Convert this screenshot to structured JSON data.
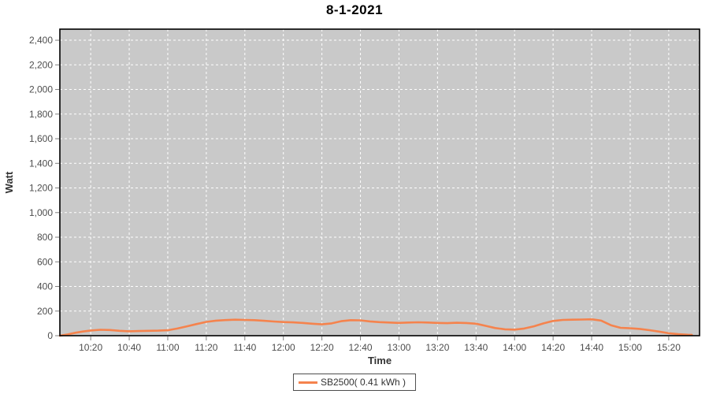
{
  "title": "8-1-2021",
  "legend": {
    "label": "SB2500( 0.41 kWh )"
  },
  "chart_data": {
    "type": "line",
    "title": "8-1-2021",
    "xlabel": "Time",
    "ylabel": "Watt",
    "x_domain": [
      "10:04",
      "15:36"
    ],
    "ylim": [
      0,
      2490
    ],
    "ytick_values": [
      0,
      200,
      400,
      600,
      800,
      1000,
      1200,
      1400,
      1600,
      1800,
      2000,
      2200,
      2400
    ],
    "ytick_labels": [
      "0",
      "200",
      "400",
      "600",
      "800",
      "1,000",
      "1,200",
      "1,400",
      "1,600",
      "1,800",
      "2,000",
      "2,200",
      "2,400"
    ],
    "xtick_labels": [
      "10:20",
      "10:40",
      "11:00",
      "11:20",
      "11:40",
      "12:00",
      "12:20",
      "12:40",
      "13:00",
      "13:20",
      "13:40",
      "14:00",
      "14:20",
      "14:40",
      "15:00",
      "15:20"
    ],
    "grid": true,
    "legend_position": "bottom",
    "colors": {
      "plot_bg": "#C9C9C9",
      "grid": "#FFFFFF",
      "series": "#F5834D",
      "plot_border": "#000000",
      "axis": "#808080",
      "tick_text": "#4D4D4D",
      "axis_title_text": "#333333"
    },
    "series": [
      {
        "name": "SB2500( 0.41 kWh )",
        "color": "#F5834D",
        "points": [
          [
            "10:04",
            0
          ],
          [
            "10:08",
            10
          ],
          [
            "10:12",
            24
          ],
          [
            "10:16",
            34
          ],
          [
            "10:20",
            42
          ],
          [
            "10:25",
            48
          ],
          [
            "10:30",
            46
          ],
          [
            "10:35",
            40
          ],
          [
            "10:40",
            36
          ],
          [
            "10:45",
            38
          ],
          [
            "10:50",
            40
          ],
          [
            "10:55",
            41
          ],
          [
            "11:00",
            44
          ],
          [
            "11:05",
            58
          ],
          [
            "11:10",
            76
          ],
          [
            "11:15",
            95
          ],
          [
            "11:20",
            112
          ],
          [
            "11:25",
            122
          ],
          [
            "11:30",
            127
          ],
          [
            "11:35",
            130
          ],
          [
            "11:40",
            128
          ],
          [
            "11:45",
            126
          ],
          [
            "11:50",
            121
          ],
          [
            "11:55",
            115
          ],
          [
            "12:00",
            111
          ],
          [
            "12:05",
            108
          ],
          [
            "12:10",
            104
          ],
          [
            "12:15",
            97
          ],
          [
            "12:20",
            92
          ],
          [
            "12:25",
            100
          ],
          [
            "12:30",
            118
          ],
          [
            "12:35",
            126
          ],
          [
            "12:40",
            125
          ],
          [
            "12:45",
            116
          ],
          [
            "12:50",
            110
          ],
          [
            "12:55",
            107
          ],
          [
            "13:00",
            104
          ],
          [
            "13:05",
            107
          ],
          [
            "13:10",
            109
          ],
          [
            "13:15",
            107
          ],
          [
            "13:20",
            104
          ],
          [
            "13:25",
            102
          ],
          [
            "13:30",
            105
          ],
          [
            "13:35",
            103
          ],
          [
            "13:40",
            97
          ],
          [
            "13:45",
            80
          ],
          [
            "13:50",
            62
          ],
          [
            "13:55",
            52
          ],
          [
            "14:00",
            49
          ],
          [
            "14:05",
            58
          ],
          [
            "14:10",
            76
          ],
          [
            "14:15",
            100
          ],
          [
            "14:20",
            120
          ],
          [
            "14:25",
            128
          ],
          [
            "14:30",
            130
          ],
          [
            "14:35",
            131
          ],
          [
            "14:40",
            133
          ],
          [
            "14:45",
            122
          ],
          [
            "14:50",
            85
          ],
          [
            "14:55",
            64
          ],
          [
            "15:00",
            60
          ],
          [
            "15:05",
            55
          ],
          [
            "15:10",
            45
          ],
          [
            "15:15",
            33
          ],
          [
            "15:20",
            20
          ],
          [
            "15:25",
            12
          ],
          [
            "15:30",
            8
          ],
          [
            "15:32",
            7
          ]
        ]
      }
    ]
  }
}
